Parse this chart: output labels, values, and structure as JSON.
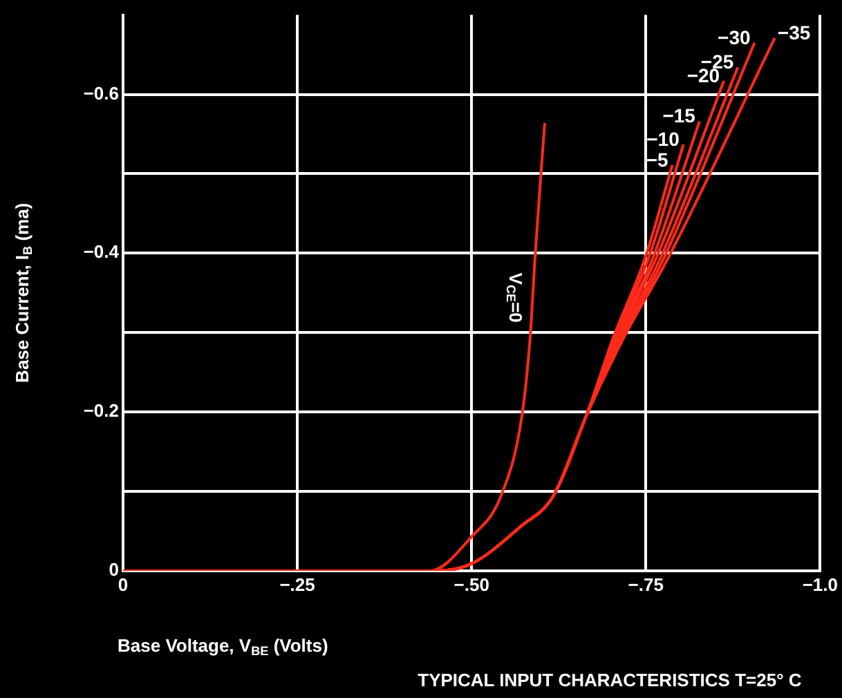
{
  "chart_data": {
    "type": "line",
    "xlabel": "Base Voltage, V$_{BE}$ (Volts)",
    "ylabel": "Base Current, I$_{B}$ (ma)",
    "annotations": [
      "TYPICAL INPUT CHARACTERISTICS T=25° C"
    ],
    "xlim": [
      0,
      -1.0
    ],
    "ylim": [
      0,
      -0.7
    ],
    "xticks": [
      0,
      {
        "value": -0.25,
        "label": "−.25"
      },
      {
        "value": -0.5,
        "label": "−.50"
      },
      {
        "value": -0.75,
        "label": "−.75"
      },
      {
        "value": -1.0,
        "label": "−1.0"
      }
    ],
    "yticks": [
      0,
      {
        "value": -0.1,
        "label": null
      },
      {
        "value": -0.2,
        "label": "−0.2"
      },
      {
        "value": -0.3,
        "label": null
      },
      {
        "value": -0.4,
        "label": "−0.4"
      },
      {
        "value": -0.5,
        "label": null
      },
      {
        "value": -0.6,
        "label": "−0.6"
      }
    ],
    "grid": true,
    "legend": false,
    "marker": "none",
    "line_style": "solid",
    "series": [
      {
        "name": "V$_{CE}$=0",
        "color": "#ff2a1a",
        "x": [
          0,
          -0.44,
          -0.5,
          -0.542,
          -0.572,
          -0.584,
          -0.591,
          -0.599,
          -0.605
        ],
        "values": [
          0,
          0,
          -0.043,
          -0.094,
          -0.194,
          -0.294,
          -0.394,
          -0.494,
          -0.564
        ]
      },
      {
        "name": "−5",
        "color": "#ff2a1a",
        "x": [
          0,
          -0.45,
          -0.5,
          -0.572,
          -0.617,
          -0.664,
          -0.703,
          -0.749,
          -0.788
        ],
        "values": [
          0,
          0,
          -0.009,
          -0.057,
          -0.094,
          -0.194,
          -0.293,
          -0.394,
          -0.511
        ]
      },
      {
        "name": "−10",
        "color": "#ff2a1a",
        "x": [
          0,
          -0.45,
          -0.5,
          -0.572,
          -0.617,
          -0.664,
          -0.705,
          -0.754,
          -0.804
        ],
        "values": [
          0,
          0,
          -0.009,
          -0.057,
          -0.094,
          -0.194,
          -0.293,
          -0.394,
          -0.537
        ]
      },
      {
        "name": "−15",
        "color": "#ff2a1a",
        "x": [
          0,
          -0.45,
          -0.5,
          -0.572,
          -0.617,
          -0.664,
          -0.708,
          -0.76,
          -0.827
        ],
        "values": [
          0,
          0,
          -0.009,
          -0.057,
          -0.094,
          -0.194,
          -0.293,
          -0.394,
          -0.566
        ]
      },
      {
        "name": "−20",
        "color": "#ff2a1a",
        "x": [
          0,
          -0.45,
          -0.5,
          -0.572,
          -0.617,
          -0.664,
          -0.71,
          -0.765,
          -0.862
        ],
        "values": [
          0,
          0,
          -0.009,
          -0.057,
          -0.094,
          -0.194,
          -0.293,
          -0.394,
          -0.617
        ]
      },
      {
        "name": "−25",
        "color": "#ff2a1a",
        "x": [
          0,
          -0.45,
          -0.5,
          -0.572,
          -0.617,
          -0.664,
          -0.713,
          -0.771,
          -0.882
        ],
        "values": [
          0,
          0,
          -0.009,
          -0.057,
          -0.094,
          -0.194,
          -0.293,
          -0.394,
          -0.634
        ]
      },
      {
        "name": "−30",
        "color": "#ff2a1a",
        "x": [
          0,
          -0.45,
          -0.5,
          -0.572,
          -0.617,
          -0.664,
          -0.716,
          -0.776,
          -0.906
        ],
        "values": [
          0,
          0,
          -0.009,
          -0.057,
          -0.094,
          -0.194,
          -0.293,
          -0.394,
          -0.665
        ]
      },
      {
        "name": "−35",
        "color": "#ff2a1a",
        "x": [
          0,
          -0.45,
          -0.5,
          -0.572,
          -0.617,
          -0.664,
          -0.718,
          -0.782,
          -0.935
        ],
        "values": [
          0,
          0,
          -0.009,
          -0.057,
          -0.094,
          -0.194,
          -0.293,
          -0.394,
          -0.671
        ]
      }
    ]
  }
}
